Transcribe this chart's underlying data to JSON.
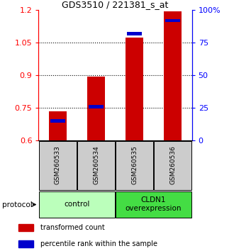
{
  "title": "GDS3510 / 221381_s_at",
  "samples": [
    "GSM260533",
    "GSM260534",
    "GSM260535",
    "GSM260536"
  ],
  "transformed_counts": [
    0.735,
    0.895,
    1.075,
    1.195
  ],
  "percentile_ranks": [
    15,
    26,
    82,
    92
  ],
  "ylim_left": [
    0.6,
    1.2
  ],
  "ylim_right": [
    0,
    100
  ],
  "yticks_left": [
    0.6,
    0.75,
    0.9,
    1.05,
    1.2
  ],
  "yticks_right": [
    0,
    25,
    50,
    75,
    100
  ],
  "ytick_labels_right": [
    "0",
    "25",
    "50",
    "75",
    "100%"
  ],
  "bar_color_red": "#cc0000",
  "bar_color_blue": "#0000cc",
  "bar_bottom": 0.6,
  "groups": [
    {
      "label": "control",
      "samples": [
        0,
        1
      ],
      "color": "#bbffbb"
    },
    {
      "label": "CLDN1\noverexpression",
      "samples": [
        2,
        3
      ],
      "color": "#44dd44"
    }
  ],
  "sample_box_color": "#cccccc",
  "legend_red_label": "transformed count",
  "legend_blue_label": "percentile rank within the sample",
  "protocol_label": "protocol",
  "bar_width": 0.45,
  "blue_bar_height": 0.015
}
